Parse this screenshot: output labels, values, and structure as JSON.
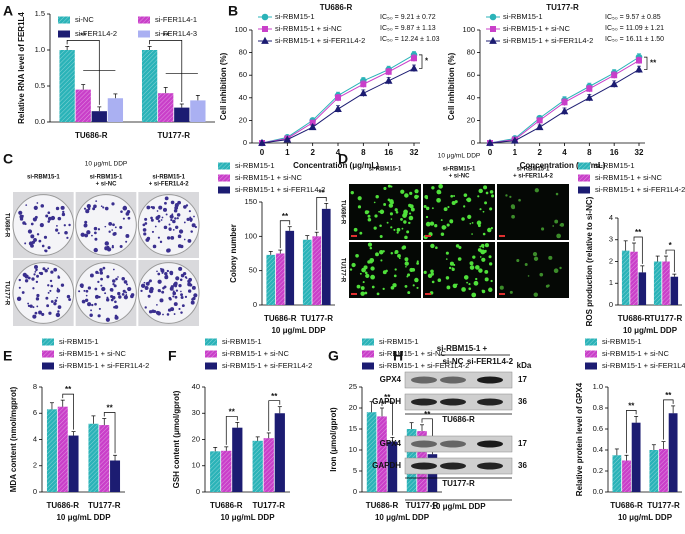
{
  "chart_data": [
    {
      "panel": "A",
      "type": "bar",
      "ylabel": "Relative RNA level of FER1L4",
      "categories": [
        "TU686-R",
        "TU177-R"
      ],
      "series": [
        {
          "name": "si-NC",
          "color": "#2ab3b8",
          "hatch": true,
          "values": [
            1.0,
            1.0
          ],
          "errors": [
            0.05,
            0.05
          ]
        },
        {
          "name": "si-FER1L4-1",
          "color": "#c93fc9",
          "hatch": true,
          "values": [
            0.45,
            0.4
          ],
          "errors": [
            0.07,
            0.08
          ]
        },
        {
          "name": "si-FER1L4-2",
          "color": "#1c1c72",
          "hatch": false,
          "values": [
            0.15,
            0.2
          ],
          "errors": [
            0.06,
            0.05
          ]
        },
        {
          "name": "si-FER1L4-3",
          "color": "#aab0f2",
          "hatch": false,
          "values": [
            0.33,
            0.3
          ],
          "errors": [
            0.06,
            0.07
          ]
        }
      ],
      "ylim": [
        0,
        1.5
      ],
      "yticks": [
        {
          "value": 0,
          "label": "0.0"
        },
        {
          "value": 0.5,
          "label": "0.5"
        },
        {
          "value": 1,
          "label": "1.0"
        },
        {
          "value": 1.5,
          "label": "1.5"
        }
      ],
      "significance": [
        "**",
        "**"
      ]
    },
    {
      "panel": "B",
      "type": "line",
      "title": "TU686-R",
      "xlabel": "Concentration (μg/mL)",
      "ylabel": "Cell inhibition (%)",
      "categories": [
        "0",
        "1",
        "2",
        "4",
        "8",
        "16",
        "32"
      ],
      "series": [
        {
          "name": "si-RBM15-1",
          "color": "#2ab3b8",
          "marker": "circle",
          "values": [
            0,
            5,
            20,
            42,
            55,
            65,
            78
          ],
          "errors": [
            0,
            1,
            2,
            3,
            3,
            3,
            3
          ]
        },
        {
          "name": "si-RBM15-1 + si-NC",
          "color": "#c93fc9",
          "marker": "square",
          "values": [
            0,
            4,
            18,
            40,
            52,
            63,
            75
          ],
          "errors": [
            0,
            1,
            2,
            3,
            3,
            3,
            3
          ]
        },
        {
          "name": "si-RBM15-1 + si-FER1L4-2",
          "color": "#1c1c72",
          "marker": "triangle",
          "values": [
            0,
            3,
            14,
            30,
            44,
            55,
            66
          ],
          "errors": [
            0,
            1,
            2,
            3,
            3,
            3,
            3
          ]
        }
      ],
      "ylim": [
        0,
        100
      ],
      "yticks": [
        0,
        20,
        40,
        60,
        80,
        100
      ],
      "annotations": [
        "IC₅₀ = 9.21 ± 0.72",
        "IC₅₀ = 9.87 ± 1.13",
        "IC₅₀ = 12.24 ± 1.03"
      ],
      "significance": "*"
    },
    {
      "type": "line",
      "title": "TU177-R",
      "xlabel": "Concentration (μg/mL)",
      "ylabel": "Cell inhibition (%)",
      "categories": [
        "0",
        "1",
        "2",
        "4",
        "8",
        "16",
        "32"
      ],
      "series": [
        {
          "name": "si-RBM15-1",
          "color": "#2ab3b8",
          "marker": "circle",
          "values": [
            0,
            4,
            22,
            38,
            50,
            62,
            76
          ],
          "errors": [
            0,
            1,
            2,
            3,
            3,
            3,
            3
          ]
        },
        {
          "name": "si-RBM15-1 + si-NC",
          "color": "#c93fc9",
          "marker": "square",
          "values": [
            0,
            3,
            20,
            36,
            48,
            60,
            73
          ],
          "errors": [
            0,
            1,
            2,
            3,
            3,
            3,
            3
          ]
        },
        {
          "name": "si-RBM15-1 + si-FER1L4-2",
          "color": "#1c1c72",
          "marker": "triangle",
          "values": [
            0,
            2,
            14,
            28,
            40,
            52,
            65
          ],
          "errors": [
            0,
            1,
            2,
            3,
            3,
            3,
            3
          ]
        }
      ],
      "ylim": [
        0,
        100
      ],
      "yticks": [
        0,
        20,
        40,
        60,
        80,
        100
      ],
      "annotations": [
        "IC₅₀ = 9.57 ± 0.85",
        "IC₅₀ = 11.09 ± 1.21",
        "IC₅₀ = 16.11 ± 1.50"
      ],
      "significance": "**"
    },
    {
      "panel": "C",
      "type": "bar",
      "ylabel": "Colony number",
      "xlabel": "10 μg/mL DDP",
      "categories": [
        "TU686-R",
        "TU177-R"
      ],
      "series": [
        {
          "name": "si-RBM15-1",
          "color": "#2ab3b8",
          "hatch": true,
          "values": [
            73,
            95
          ],
          "errors": [
            5,
            6
          ]
        },
        {
          "name": "si-RBM15-1 + si-NC",
          "color": "#c93fc9",
          "hatch": true,
          "values": [
            75,
            100
          ],
          "errors": [
            5,
            6
          ]
        },
        {
          "name": "si-RBM15-1 + si-FER1L4-2",
          "color": "#1c1c72",
          "hatch": false,
          "values": [
            108,
            140
          ],
          "errors": [
            6,
            8
          ]
        }
      ],
      "ylim": [
        0,
        150
      ],
      "yticks": [
        0,
        50,
        100,
        150
      ],
      "significance": [
        "**",
        "**"
      ],
      "image_panel": {
        "title": "10 μg/mL DDP",
        "columns": [
          [
            "si-RBM15-1"
          ],
          [
            "si-RBM15-1",
            "+ si-NC"
          ],
          [
            "si-RBM15-1",
            "+ si-FER1L4-2"
          ]
        ],
        "rows": [
          "TU686-R",
          "TU177-R"
        ],
        "style": "colony"
      }
    },
    {
      "panel": "D",
      "type": "bar",
      "ylabel": "ROS production (relative to si-NC)",
      "xlabel": "10 μg/mL DDP",
      "categories": [
        "TU686-R",
        "TU177-R"
      ],
      "series": [
        {
          "name": "si-RBM15-1",
          "color": "#2ab3b8",
          "hatch": true,
          "values": [
            2.5,
            2.0
          ],
          "errors": [
            0.45,
            0.25
          ]
        },
        {
          "name": "si-RBM15-1 + si-NC",
          "color": "#c93fc9",
          "hatch": true,
          "values": [
            2.45,
            2.0
          ],
          "errors": [
            0.4,
            0.25
          ]
        },
        {
          "name": "si-RBM15-1 + si-FER1L4-2",
          "color": "#1c1c72",
          "hatch": false,
          "values": [
            1.5,
            1.3
          ],
          "errors": [
            0.3,
            0.12
          ]
        }
      ],
      "ylim": [
        0,
        4
      ],
      "yticks": [
        0,
        1,
        2,
        3,
        4
      ],
      "significance": [
        "**",
        "*"
      ],
      "image_panel": {
        "title": "10 μg/mL DDP",
        "columns": [
          [
            "si-RBM15-1"
          ],
          [
            "si-RBM15-1",
            "+ si-NC"
          ],
          [
            "si-RBM15-1",
            "+ si-FER1L4-2"
          ]
        ],
        "rows": [
          "TU686-R",
          "TU177-R"
        ],
        "style": "fluorescence"
      }
    },
    {
      "panel": "E",
      "type": "bar",
      "ylabel": "MDA content (nmol/mgprot)",
      "xlabel": "10 μg/mL DDP",
      "categories": [
        "TU686-R",
        "TU177-R"
      ],
      "series": [
        {
          "name": "si-RBM15-1",
          "color": "#2ab3b8",
          "hatch": true,
          "values": [
            6.3,
            5.2
          ],
          "errors": [
            0.5,
            0.6
          ]
        },
        {
          "name": "si-RBM15-1 + si-NC",
          "color": "#c93fc9",
          "hatch": true,
          "values": [
            6.5,
            5.1
          ],
          "errors": [
            0.5,
            0.5
          ]
        },
        {
          "name": "si-RBM15-1 + si-FER1L4-2",
          "color": "#1c1c72",
          "hatch": false,
          "values": [
            4.3,
            2.4
          ],
          "errors": [
            0.3,
            0.4
          ]
        }
      ],
      "ylim": [
        0,
        8
      ],
      "yticks": [
        0,
        2,
        4,
        6,
        8
      ],
      "significance": [
        "**",
        "**"
      ]
    },
    {
      "panel": "F",
      "type": "bar",
      "ylabel": "GSH content (μmol/gprot)",
      "xlabel": "10 μg/mL DDP",
      "categories": [
        "TU686-R",
        "TU177-R"
      ],
      "series": [
        {
          "name": "si-RBM15-1",
          "color": "#2ab3b8",
          "hatch": true,
          "values": [
            15.5,
            19.5
          ],
          "errors": [
            1.5,
            1.5
          ]
        },
        {
          "name": "si-RBM15-1 + si-NC",
          "color": "#c93fc9",
          "hatch": true,
          "values": [
            15.7,
            20.5
          ],
          "errors": [
            1.5,
            2
          ]
        },
        {
          "name": "si-RBM15-1 + si-FER1L4-2",
          "color": "#1c1c72",
          "hatch": false,
          "values": [
            24.5,
            30
          ],
          "errors": [
            2,
            2.5
          ]
        }
      ],
      "ylim": [
        0,
        40
      ],
      "yticks": [
        0,
        10,
        20,
        30,
        40
      ],
      "significance": [
        "**",
        "**"
      ]
    },
    {
      "panel": "G",
      "type": "bar",
      "ylabel": "Iron (μmol/gprot)",
      "xlabel": "10 μg/mL DDP",
      "categories": [
        "TU686-R",
        "TU177-R"
      ],
      "series": [
        {
          "name": "si-RBM15-1",
          "color": "#2ab3b8",
          "hatch": true,
          "values": [
            19,
            15
          ],
          "errors": [
            2.5,
            1.5
          ]
        },
        {
          "name": "si-RBM15-1 + si-NC",
          "color": "#c93fc9",
          "hatch": true,
          "values": [
            18,
            14.5
          ],
          "errors": [
            2,
            1.5
          ]
        },
        {
          "name": "si-RBM15-1 + si-FER1L4-2",
          "color": "#1c1c72",
          "hatch": false,
          "values": [
            12,
            9
          ],
          "errors": [
            1,
            1
          ]
        }
      ],
      "ylim": [
        0,
        25
      ],
      "yticks": [
        0,
        5,
        10,
        15,
        20,
        25
      ],
      "significance": [
        "**",
        "**"
      ]
    },
    {
      "panel": "H",
      "type": "bar",
      "ylabel": "Relative protein level of GPX4",
      "xlabel": "10 μg/mL DDP",
      "categories": [
        "TU686-R",
        "TU177-R"
      ],
      "series": [
        {
          "name": "si-RBM15-1",
          "color": "#2ab3b8",
          "hatch": true,
          "values": [
            0.35,
            0.4
          ],
          "errors": [
            0.06,
            0.05
          ]
        },
        {
          "name": "si-RBM15-1 + si-NC",
          "color": "#c93fc9",
          "hatch": true,
          "values": [
            0.3,
            0.41
          ],
          "errors": [
            0.05,
            0.07
          ]
        },
        {
          "name": "si-RBM15-1 + si-FER1L4-2",
          "color": "#1c1c72",
          "hatch": false,
          "values": [
            0.66,
            0.75
          ],
          "errors": [
            0.06,
            0.07
          ]
        }
      ],
      "ylim": [
        0,
        1
      ],
      "yticks": [
        {
          "value": 0,
          "label": "0.0"
        },
        0.2,
        0.4,
        0.6,
        0.8,
        {
          "value": 1,
          "label": "1.0"
        }
      ],
      "significance": [
        "**",
        "**"
      ],
      "blot": {
        "header": "si-RBM15-1 +",
        "lanes": [
          "si-NC",
          "si-FER1L4-2"
        ],
        "unit": "kDa",
        "groups": [
          {
            "name": "TU686-R",
            "bands": [
              {
                "protein": "GPX4",
                "kda": "17"
              },
              {
                "protein": "GAPDH",
                "kda": "36"
              }
            ]
          },
          {
            "name": "TU177-R",
            "bands": [
              {
                "protein": "GPX4",
                "kda": "17"
              },
              {
                "protein": "GAPDH",
                "kda": "36"
              }
            ]
          }
        ],
        "footer": "10 μg/mL DDP"
      }
    }
  ]
}
